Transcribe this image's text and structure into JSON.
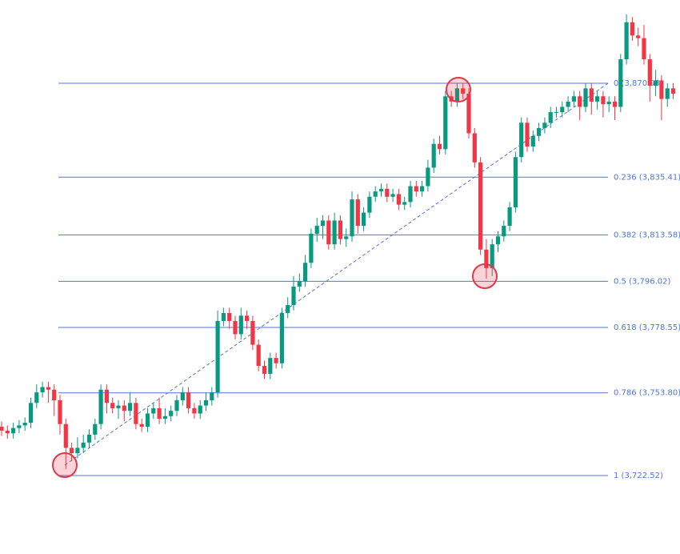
{
  "chart_data": {
    "type": "candlestick",
    "ylim": [
      3692.84,
      3902.43
    ],
    "up_color": "#089981",
    "down_color": "#f23645",
    "fib_color": "#4d74e0",
    "categories": [
      null,
      null,
      null,
      null,
      null,
      null,
      null,
      null,
      null,
      null,
      null,
      null,
      null,
      null,
      null,
      null,
      null,
      null,
      null,
      null,
      null,
      null,
      null,
      null,
      null,
      null,
      null,
      null,
      null,
      null,
      null,
      null,
      null,
      null,
      null,
      null,
      null,
      null,
      null,
      null,
      null,
      null,
      null,
      null,
      null,
      null,
      null,
      null,
      null,
      null,
      null,
      null,
      null,
      null,
      null,
      null,
      null,
      null,
      null,
      null,
      null,
      null,
      null,
      null,
      null,
      null,
      null,
      null,
      null,
      null,
      null,
      null,
      null,
      null,
      null,
      null,
      null,
      null,
      null,
      null,
      null,
      null,
      null,
      null,
      null,
      null,
      null,
      null,
      null,
      null,
      null,
      null,
      null,
      null,
      null,
      null,
      null,
      null,
      null,
      null,
      null,
      null,
      null,
      null,
      null,
      null,
      null,
      null,
      null,
      null,
      null,
      null,
      null,
      null,
      null,
      null
    ],
    "open": [
      3741,
      3739.5,
      3738.5,
      3740.5,
      3741.5,
      3742.5,
      3750,
      3754,
      3756,
      3755,
      3751,
      3742,
      3733,
      3731,
      3733,
      3735,
      3738,
      3742,
      3755,
      3750,
      3748,
      3749,
      3747,
      3750,
      3742,
      3741,
      3746,
      3748,
      3744,
      3745,
      3747,
      3751,
      3754,
      3748,
      3746,
      3749,
      3751,
      3754,
      3781,
      3784,
      3781,
      3776,
      3783,
      3781,
      3772,
      3764,
      3761,
      3767,
      3765,
      3784,
      3787,
      3794,
      3796,
      3803,
      3814,
      3817,
      3819,
      3810,
      3819,
      3812,
      3813,
      3827,
      3817,
      3822,
      3828,
      3830,
      3831,
      3828,
      3829,
      3825,
      3826,
      3832,
      3830,
      3832,
      3839,
      3848,
      3846,
      3866,
      3864,
      3869,
      3867,
      3852,
      3841,
      3808,
      3801,
      3810,
      3813,
      3817,
      3824,
      3843,
      3856,
      3847,
      3851,
      3854,
      3856,
      3860,
      3860,
      3862,
      3864,
      3866,
      3862,
      3869,
      3864,
      3866,
      3863,
      3864,
      3862,
      3880,
      3894,
      3889,
      3888,
      3880,
      3870,
      3872,
      3865,
      3869
    ],
    "high": [
      3743,
      3741.5,
      3742.5,
      3743.5,
      3744.5,
      3752,
      3757,
      3758,
      3758,
      3757,
      3753,
      3744,
      3735,
      3737,
      3738,
      3740,
      3744,
      3757,
      3757,
      3752,
      3751,
      3751,
      3754,
      3752,
      3744,
      3748,
      3750,
      3752,
      3748,
      3749,
      3753,
      3756,
      3756,
      3750,
      3751,
      3754,
      3756,
      3785,
      3786,
      3786,
      3783,
      3786,
      3785,
      3783,
      3774,
      3766,
      3769,
      3769,
      3786,
      3790,
      3798,
      3799,
      3806,
      3816,
      3820,
      3821,
      3821,
      3822,
      3821,
      3816,
      3830,
      3829,
      3824,
      3830,
      3832,
      3833,
      3833,
      3831,
      3831,
      3828,
      3834,
      3834,
      3834,
      3842,
      3850,
      3851,
      3868,
      3868,
      3871,
      3871,
      3869,
      3854,
      3843,
      3812,
      3812,
      3815,
      3819,
      3826,
      3845,
      3858,
      3858,
      3853,
      3856,
      3858,
      3862,
      3862,
      3864,
      3866,
      3868,
      3868,
      3871,
      3871,
      3868,
      3868,
      3866,
      3866,
      3882,
      3897,
      3896,
      3892,
      3893,
      3882,
      3876,
      3874,
      3871,
      3871
    ],
    "low": [
      3737.5,
      3736.5,
      3736.5,
      3738.5,
      3739.5,
      3740.5,
      3748,
      3752,
      3750,
      3745,
      3738,
      3725,
      3728,
      3729,
      3731,
      3733,
      3736,
      3740,
      3746,
      3746,
      3744,
      3743,
      3745,
      3740,
      3739,
      3739,
      3744,
      3742,
      3742,
      3743,
      3745,
      3749,
      3746,
      3744,
      3744,
      3747,
      3749,
      3752,
      3779,
      3778,
      3774,
      3774,
      3778,
      3770,
      3762,
      3759,
      3759,
      3763,
      3763,
      3782,
      3785,
      3792,
      3794,
      3801,
      3811,
      3812,
      3808,
      3808,
      3810,
      3809,
      3811,
      3814,
      3815,
      3820,
      3826,
      3828,
      3826,
      3826,
      3823,
      3823,
      3824,
      3828,
      3828,
      3830,
      3837,
      3844,
      3844,
      3862,
      3862,
      3865,
      3850,
      3839,
      3806,
      3797,
      3798,
      3807,
      3811,
      3815,
      3822,
      3841,
      3845,
      3845,
      3849,
      3852,
      3854,
      3858,
      3858,
      3860,
      3862,
      3857,
      3860,
      3859,
      3861,
      3858,
      3860,
      3857,
      3860,
      3878,
      3887,
      3885,
      3878,
      3864,
      3866,
      3857,
      3862,
      3865
    ],
    "close": [
      3739.5,
      3738.5,
      3740.5,
      3741.5,
      3742.5,
      3750,
      3754,
      3756,
      3755,
      3751,
      3742,
      3733,
      3731,
      3733,
      3735,
      3738,
      3742,
      3755,
      3750,
      3748,
      3749,
      3747,
      3750,
      3742,
      3741,
      3746,
      3748,
      3744,
      3745,
      3747,
      3751,
      3754,
      3748,
      3746,
      3749,
      3751,
      3754,
      3781,
      3784,
      3781,
      3776,
      3783,
      3781,
      3772,
      3764,
      3761,
      3767,
      3765,
      3784,
      3787,
      3794,
      3796,
      3803,
      3814,
      3817,
      3819,
      3810,
      3819,
      3812,
      3813,
      3827,
      3817,
      3822,
      3828,
      3830,
      3831,
      3828,
      3829,
      3825,
      3826,
      3832,
      3830,
      3832,
      3839,
      3848,
      3846,
      3866,
      3864,
      3869,
      3867,
      3852,
      3841,
      3808,
      3801,
      3810,
      3813,
      3817,
      3824,
      3843,
      3856,
      3847,
      3851,
      3854,
      3856,
      3860,
      3860,
      3862,
      3864,
      3866,
      3862,
      3869,
      3864,
      3866,
      3863,
      3864,
      3862,
      3880,
      3894,
      3889,
      3888,
      3880,
      3870,
      3872,
      3865,
      3869,
      3867
    ],
    "fib_levels": [
      {
        "label": "0 (3,870.93)",
        "value": 3870.93
      },
      {
        "label": "0.236 (3,835.41)",
        "value": 3835.41
      },
      {
        "label": "0.382 (3,813.58)",
        "value": 3813.58
      },
      {
        "label": "0.5 (3,796.02)",
        "value": 3796.02
      },
      {
        "label": "0.618 (3,778.55)",
        "value": 3778.55
      },
      {
        "label": "0.786 (3,753.80)",
        "value": 3753.8
      },
      {
        "label": "1 (3,722.52)",
        "value": 3722.52
      }
    ]
  }
}
